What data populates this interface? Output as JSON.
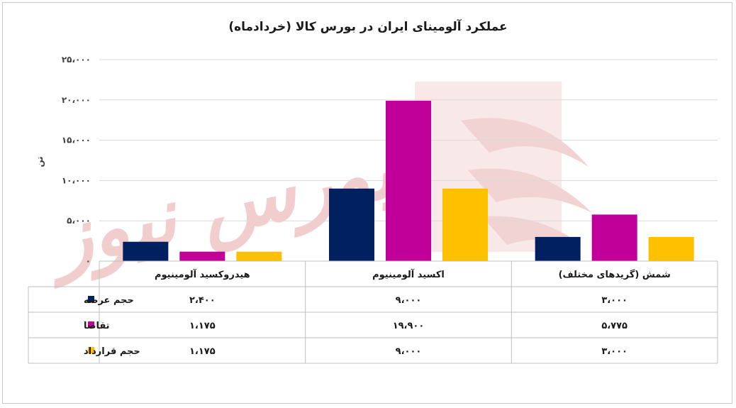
{
  "chart_data": {
    "type": "bar",
    "title": "عملکرد آلومینای ایران در بورس کالا (خردادماه)",
    "ylabel": "تن",
    "ylim": [
      0,
      25000
    ],
    "y_ticks": [
      {
        "value": 0,
        "label": "۰"
      },
      {
        "value": 5000,
        "label": "۵،۰۰۰"
      },
      {
        "value": 10000,
        "label": "۱۰،۰۰۰"
      },
      {
        "value": 15000,
        "label": "۱۵،۰۰۰"
      },
      {
        "value": 20000,
        "label": "۲۰،۰۰۰"
      },
      {
        "value": 25000,
        "label": "۲۵،۰۰۰"
      }
    ],
    "categories": [
      "هیدروکسید آلومینیوم",
      "اکسید آلومینیوم",
      "شمش (گریدهای مختلف)"
    ],
    "series": [
      {
        "name": "حجم عرضه",
        "color": "#002060",
        "values": [
          2400,
          9000,
          3000
        ],
        "labels": [
          "۲،۴۰۰",
          "۹،۰۰۰",
          "۳،۰۰۰"
        ]
      },
      {
        "name": "تقاضا",
        "color": "#c00099",
        "values": [
          1175,
          19900,
          5775
        ],
        "labels": [
          "۱،۱۷۵",
          "۱۹،۹۰۰",
          "۵،۷۷۵"
        ]
      },
      {
        "name": "حجم قرارداد",
        "color": "#ffc000",
        "values": [
          1175,
          9000,
          3000
        ],
        "labels": [
          "۱،۱۷۵",
          "۹،۰۰۰",
          "۳،۰۰۰"
        ]
      }
    ],
    "gridlines": true,
    "legend": "data-table-right"
  },
  "watermark": {
    "text": "بورس نیوز",
    "color": "#e8a0a0"
  }
}
